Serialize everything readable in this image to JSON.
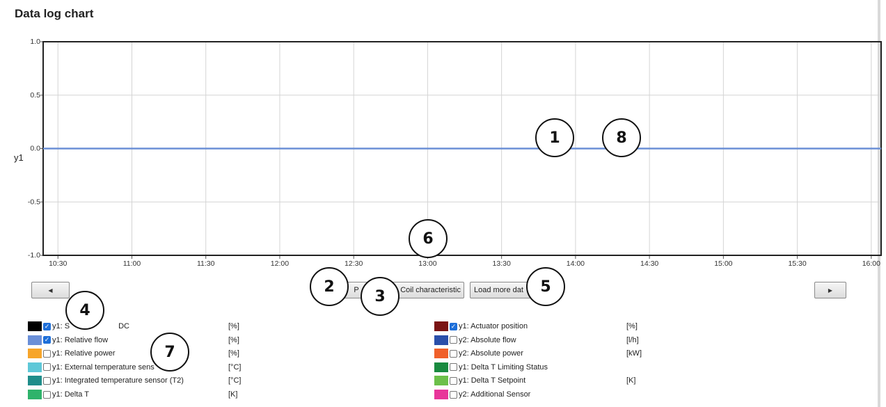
{
  "page": {
    "title": "Data log chart"
  },
  "chart_data": {
    "type": "line",
    "ylabel": "y1",
    "ylim": [
      -1.0,
      1.0
    ],
    "yticks": [
      "1.0",
      "0.5",
      "0.0",
      "-0.5",
      "-1.0"
    ],
    "xlim": [
      "10:24",
      "16:04"
    ],
    "xticks": [
      "10:30",
      "11:00",
      "11:30",
      "12:00",
      "12:30",
      "13:00",
      "13:30",
      "14:00",
      "14:30",
      "15:00",
      "15:30",
      "16:00"
    ],
    "grid": true,
    "series": [
      {
        "color": "#6b8fd6",
        "x": [
          "10:24",
          "16:04"
        ],
        "y": [
          0.0,
          0.0
        ]
      }
    ]
  },
  "controls": {
    "prev_icon": "left-triangle-icon",
    "next_icon": "right-triangle-icon",
    "hidden_button_text": "P",
    "coil_button": "Coil characteristic",
    "load_button": "Load more dat"
  },
  "callouts": [
    "1",
    "2",
    "3",
    "4",
    "5",
    "6",
    "7",
    "8"
  ],
  "legend": {
    "left": [
      {
        "color": "#000000",
        "checked": true,
        "label": "y1: S",
        "label_tail": "DC",
        "unit": "[%]"
      },
      {
        "color": "#6a8fd8",
        "checked": true,
        "label": "y1: Relative flow",
        "unit": "[%]"
      },
      {
        "color": "#f7a52a",
        "checked": false,
        "label": "y1: Relative power",
        "unit": "[%]"
      },
      {
        "color": "#5fc8d8",
        "checked": false,
        "label": "y1: External temperature sens",
        "unit": "[°C]"
      },
      {
        "color": "#1f8d8a",
        "checked": false,
        "label": "y1: Integrated temperature sensor (T2)",
        "unit": "[°C]"
      },
      {
        "color": "#2fb36b",
        "checked": false,
        "label": "y1: Delta T",
        "unit": "[K]"
      }
    ],
    "right": [
      {
        "color": "#7a1414",
        "checked": true,
        "label": "y1: Actuator position",
        "unit": "[%]"
      },
      {
        "color": "#2a4faa",
        "checked": false,
        "label": "y2: Absolute flow",
        "unit": "[l/h]"
      },
      {
        "color": "#f0602a",
        "checked": false,
        "label": "y2: Absolute power",
        "unit": "[kW]"
      },
      {
        "color": "#198a3f",
        "checked": false,
        "label": "y1: Delta T Limiting Status",
        "unit": ""
      },
      {
        "color": "#6cc04a",
        "checked": false,
        "label": "y1: Delta T Setpoint",
        "unit": "[K]"
      },
      {
        "color": "#e8359a",
        "checked": false,
        "label": "y2: Additional Sensor",
        "unit": ""
      }
    ]
  }
}
